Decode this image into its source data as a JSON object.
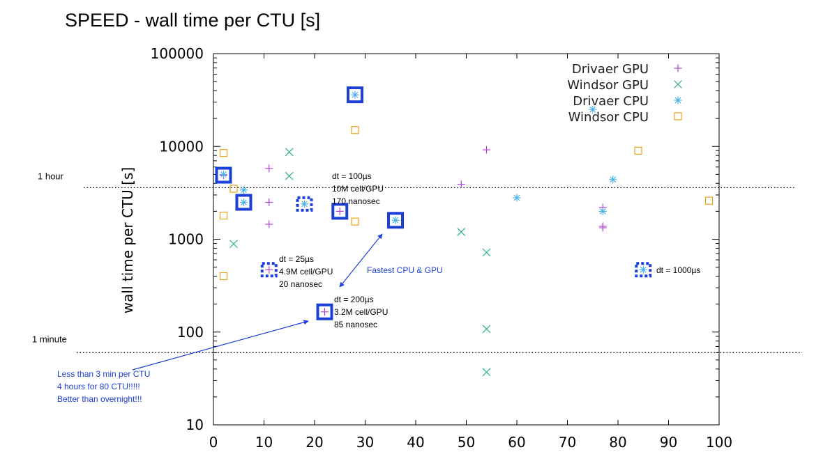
{
  "title": "SPEED - wall time per CTU [s]",
  "chart_data": {
    "type": "scatter",
    "xlabel": "",
    "ylabel": "wall time per CTU [s]",
    "xlim": [
      0,
      100
    ],
    "ylim": [
      10,
      100000
    ],
    "yscale": "log",
    "x_ticks": [
      "0",
      "10",
      "20",
      "30",
      "40",
      "50",
      "60",
      "70",
      "80",
      "90",
      "100"
    ],
    "y_ticks": [
      "10",
      "100",
      "1000",
      "10000",
      "100000"
    ],
    "legend_position": "top-right",
    "grid": false,
    "series": [
      {
        "name": "Drivaer GPU",
        "marker": "plus",
        "color": "#b044d0",
        "points": [
          [
            2,
            4900
          ],
          [
            11,
            5800
          ],
          [
            11,
            2500
          ],
          [
            11,
            1450
          ],
          [
            25,
            2000
          ],
          [
            22,
            165
          ],
          [
            11,
            470
          ],
          [
            49,
            3900
          ],
          [
            54,
            9200
          ],
          [
            77,
            2200
          ],
          [
            77,
            1380
          ],
          [
            77,
            1330
          ]
        ]
      },
      {
        "name": "Windsor GPU",
        "marker": "x",
        "color": "#2bb387",
        "points": [
          [
            4,
            890
          ],
          [
            15,
            8700
          ],
          [
            15,
            4800
          ],
          [
            49,
            1200
          ],
          [
            54,
            720
          ],
          [
            54,
            108
          ],
          [
            54,
            37
          ]
        ]
      },
      {
        "name": "Drivaer CPU",
        "marker": "star",
        "color": "#4bb2ea",
        "points": [
          [
            2,
            5000
          ],
          [
            6,
            3400
          ],
          [
            6,
            2500
          ],
          [
            18,
            2400
          ],
          [
            28,
            36000
          ],
          [
            36,
            1600
          ],
          [
            60,
            2800
          ],
          [
            75,
            25000
          ],
          [
            79,
            4400
          ],
          [
            77,
            2000
          ],
          [
            85,
            470
          ]
        ]
      },
      {
        "name": "Windsor CPU",
        "marker": "square",
        "color": "#eba21c",
        "points": [
          [
            2,
            8500
          ],
          [
            2,
            1800
          ],
          [
            2,
            400
          ],
          [
            4,
            3500
          ],
          [
            28,
            15000
          ],
          [
            28,
            1550
          ],
          [
            84,
            9000
          ],
          [
            98,
            2600
          ]
        ]
      }
    ],
    "reference_lines": [
      {
        "label": "1 hour",
        "y": 3600
      },
      {
        "label": "1 minute",
        "y": 60
      }
    ],
    "annotations": [
      {
        "lines": [
          "dt = 100µs",
          "10M cell/GPU",
          "170 nanosec"
        ]
      },
      {
        "lines": [
          "dt = 25µs",
          "4.9M cell/GPU",
          "20 nanosec"
        ]
      },
      {
        "lines": [
          "dt = 200µs",
          "3.2M cell/GPU",
          "85 nanosec"
        ]
      },
      {
        "lines": [
          "dt = 1000µs"
        ]
      },
      {
        "lines": [
          "Fastest CPU & GPU"
        ]
      },
      {
        "lines": [
          "Less than 3 min per CTU",
          "4 hours for 80 CTU!!!!!",
          "Better than overnight!!!"
        ]
      }
    ],
    "highlight_solid": [
      [
        2,
        4900
      ],
      [
        6,
        2500
      ],
      [
        25,
        2000
      ],
      [
        28,
        36000
      ],
      [
        36,
        1600
      ],
      [
        22,
        165
      ]
    ],
    "highlight_dashed": [
      [
        18,
        2400
      ],
      [
        11,
        470
      ],
      [
        85,
        470
      ]
    ]
  },
  "colors": {
    "highlight": "#1c3fd6",
    "note": "#1c3fd6"
  }
}
